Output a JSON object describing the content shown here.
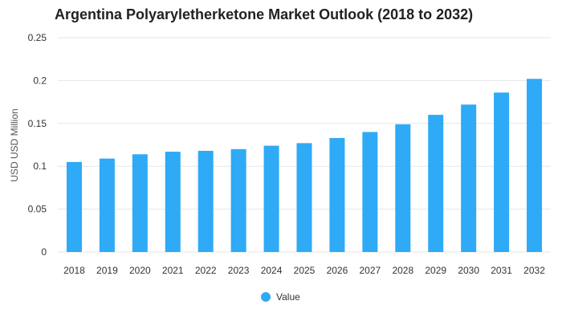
{
  "chart_data": {
    "type": "bar",
    "title": "Argentina Polyaryletherketone Market Outlook (2018 to 2032)",
    "xlabel": "",
    "ylabel": "USD USD Million",
    "categories": [
      "2018",
      "2019",
      "2020",
      "2021",
      "2022",
      "2023",
      "2024",
      "2025",
      "2026",
      "2027",
      "2028",
      "2029",
      "2030",
      "2031",
      "2032"
    ],
    "series": [
      {
        "name": "Value",
        "values": [
          0.105,
          0.109,
          0.114,
          0.117,
          0.118,
          0.12,
          0.124,
          0.127,
          0.133,
          0.14,
          0.149,
          0.16,
          0.172,
          0.186,
          0.202
        ]
      }
    ],
    "ylim": [
      0,
      0.25
    ],
    "yticks": [
      "0",
      "0.05",
      "0.1",
      "0.15",
      "0.2",
      "0.25"
    ],
    "ytick_values": [
      0,
      0.05,
      0.1,
      0.15,
      0.2,
      0.25
    ],
    "grid": true,
    "legend_position": "bottom-center",
    "bar_color": "#2eaaf6",
    "grid_color": "#e6e6e6"
  }
}
